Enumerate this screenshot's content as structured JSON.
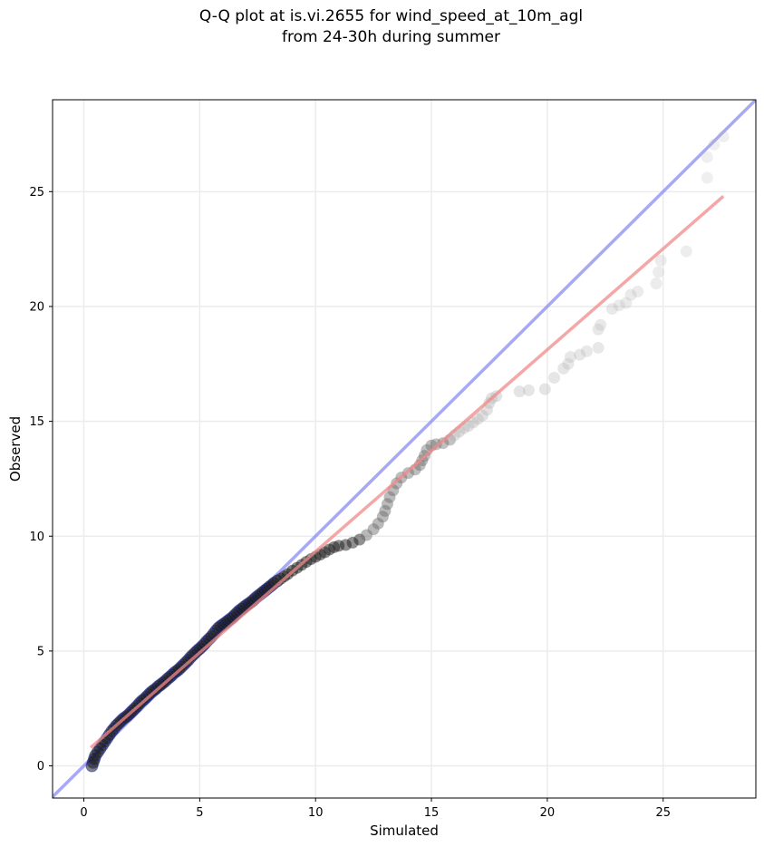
{
  "chart_data": {
    "type": "scatter",
    "title": "Q-Q plot at is.vi.2655 for wind_speed_at_10m_agl",
    "subtitle": "from 24-30h during summer",
    "xlabel": "Simulated",
    "ylabel": "Observed",
    "xlim": [
      -1.35,
      29.0
    ],
    "ylim": [
      -1.4,
      29.0
    ],
    "xticks": [
      0,
      5,
      10,
      15,
      20,
      25
    ],
    "yticks": [
      0,
      5,
      10,
      15,
      20,
      25
    ],
    "xtick_labels": [
      "0",
      "5",
      "10",
      "15",
      "20",
      "25"
    ],
    "ytick_labels": [
      "0",
      "5",
      "10",
      "15",
      "20",
      "25"
    ],
    "grid": true,
    "lines": [
      {
        "role": "identity",
        "color": "#8a8cf0",
        "points": [
          [
            -1.35,
            -1.35
          ],
          [
            29.0,
            29.0
          ]
        ]
      },
      {
        "role": "fit",
        "color": "#f08a8a",
        "points": [
          [
            0.3,
            0.8
          ],
          [
            27.6,
            24.8
          ]
        ]
      }
    ],
    "point_colors": {
      "dense": "#1a1a1a",
      "sparse": "#b4b4b4",
      "dense_edge": "#1c2aa0"
    },
    "points": [
      [
        0.35,
        0.0
      ],
      [
        0.4,
        0.15
      ],
      [
        0.45,
        0.3
      ],
      [
        0.5,
        0.45
      ],
      [
        0.6,
        0.6
      ],
      [
        0.7,
        0.75
      ],
      [
        0.8,
        0.9
      ],
      [
        0.9,
        1.05
      ],
      [
        1.0,
        1.2
      ],
      [
        1.1,
        1.35
      ],
      [
        1.2,
        1.5
      ],
      [
        1.3,
        1.62
      ],
      [
        1.4,
        1.75
      ],
      [
        1.5,
        1.85
      ],
      [
        1.6,
        1.95
      ],
      [
        1.7,
        2.05
      ],
      [
        1.8,
        2.12
      ],
      [
        1.9,
        2.2
      ],
      [
        2.0,
        2.3
      ],
      [
        2.1,
        2.4
      ],
      [
        2.2,
        2.5
      ],
      [
        2.3,
        2.6
      ],
      [
        2.4,
        2.72
      ],
      [
        2.5,
        2.82
      ],
      [
        2.6,
        2.9
      ],
      [
        2.7,
        3.0
      ],
      [
        2.8,
        3.1
      ],
      [
        2.9,
        3.2
      ],
      [
        3.0,
        3.28
      ],
      [
        3.1,
        3.35
      ],
      [
        3.2,
        3.45
      ],
      [
        3.3,
        3.52
      ],
      [
        3.4,
        3.6
      ],
      [
        3.5,
        3.68
      ],
      [
        3.6,
        3.78
      ],
      [
        3.7,
        3.86
      ],
      [
        3.8,
        3.95
      ],
      [
        3.9,
        4.05
      ],
      [
        4.0,
        4.12
      ],
      [
        4.1,
        4.2
      ],
      [
        4.2,
        4.3
      ],
      [
        4.3,
        4.4
      ],
      [
        4.4,
        4.5
      ],
      [
        4.5,
        4.6
      ],
      [
        4.6,
        4.72
      ],
      [
        4.7,
        4.82
      ],
      [
        4.8,
        4.92
      ],
      [
        4.9,
        5.02
      ],
      [
        5.0,
        5.1
      ],
      [
        5.1,
        5.2
      ],
      [
        5.2,
        5.3
      ],
      [
        5.3,
        5.42
      ],
      [
        5.4,
        5.52
      ],
      [
        5.5,
        5.62
      ],
      [
        5.6,
        5.75
      ],
      [
        5.7,
        5.88
      ],
      [
        5.8,
        6.0
      ],
      [
        5.9,
        6.08
      ],
      [
        6.0,
        6.15
      ],
      [
        6.1,
        6.22
      ],
      [
        6.2,
        6.3
      ],
      [
        6.3,
        6.38
      ],
      [
        6.4,
        6.45
      ],
      [
        6.5,
        6.55
      ],
      [
        6.6,
        6.65
      ],
      [
        6.7,
        6.75
      ],
      [
        6.8,
        6.82
      ],
      [
        6.9,
        6.9
      ],
      [
        7.0,
        6.98
      ],
      [
        7.1,
        7.05
      ],
      [
        7.2,
        7.12
      ],
      [
        7.3,
        7.2
      ],
      [
        7.4,
        7.3
      ],
      [
        7.5,
        7.38
      ],
      [
        7.6,
        7.46
      ],
      [
        7.7,
        7.54
      ],
      [
        7.8,
        7.62
      ],
      [
        7.9,
        7.7
      ],
      [
        8.0,
        7.78
      ],
      [
        8.1,
        7.86
      ],
      [
        8.2,
        7.95
      ],
      [
        8.35,
        8.05
      ],
      [
        8.5,
        8.15
      ],
      [
        8.65,
        8.25
      ],
      [
        8.8,
        8.35
      ],
      [
        9.0,
        8.5
      ],
      [
        9.2,
        8.62
      ],
      [
        9.4,
        8.75
      ],
      [
        9.6,
        8.88
      ],
      [
        9.8,
        9.0
      ],
      [
        10.0,
        9.1
      ],
      [
        10.2,
        9.2
      ],
      [
        10.4,
        9.3
      ],
      [
        10.6,
        9.42
      ],
      [
        10.8,
        9.52
      ],
      [
        11.0,
        9.58
      ],
      [
        11.3,
        9.62
      ],
      [
        11.6,
        9.72
      ],
      [
        11.9,
        9.85
      ],
      [
        12.2,
        10.05
      ],
      [
        12.5,
        10.3
      ],
      [
        12.7,
        10.55
      ],
      [
        12.9,
        10.85
      ],
      [
        13.0,
        11.1
      ],
      [
        13.1,
        11.4
      ],
      [
        13.2,
        11.7
      ],
      [
        13.35,
        12.0
      ],
      [
        13.5,
        12.3
      ],
      [
        13.7,
        12.55
      ],
      [
        14.0,
        12.75
      ],
      [
        14.3,
        12.9
      ],
      [
        14.5,
        13.1
      ],
      [
        14.6,
        13.3
      ],
      [
        14.7,
        13.5
      ],
      [
        14.8,
        13.75
      ],
      [
        15.0,
        13.95
      ],
      [
        15.2,
        14.0
      ],
      [
        15.5,
        14.05
      ],
      [
        15.8,
        14.2
      ],
      [
        16.0,
        14.4
      ],
      [
        16.2,
        14.55
      ],
      [
        16.4,
        14.7
      ],
      [
        16.6,
        14.8
      ],
      [
        16.8,
        14.95
      ],
      [
        17.0,
        15.1
      ],
      [
        17.2,
        15.25
      ],
      [
        17.4,
        15.5
      ],
      [
        17.5,
        15.8
      ],
      [
        17.6,
        16.0
      ],
      [
        17.8,
        16.1
      ],
      [
        18.8,
        16.3
      ],
      [
        19.2,
        16.35
      ],
      [
        19.9,
        16.4
      ],
      [
        20.3,
        16.9
      ],
      [
        20.7,
        17.3
      ],
      [
        20.9,
        17.5
      ],
      [
        21.0,
        17.8
      ],
      [
        21.4,
        17.9
      ],
      [
        21.7,
        18.05
      ],
      [
        22.2,
        18.2
      ],
      [
        22.2,
        19.0
      ],
      [
        22.3,
        19.2
      ],
      [
        22.8,
        19.9
      ],
      [
        23.1,
        20.05
      ],
      [
        23.4,
        20.15
      ],
      [
        23.6,
        20.5
      ],
      [
        23.9,
        20.65
      ],
      [
        24.7,
        21.0
      ],
      [
        24.8,
        21.5
      ],
      [
        24.9,
        22.0
      ],
      [
        26.0,
        22.4
      ],
      [
        26.9,
        25.6
      ],
      [
        26.9,
        26.5
      ],
      [
        27.2,
        27.05
      ],
      [
        27.6,
        27.4
      ]
    ]
  }
}
